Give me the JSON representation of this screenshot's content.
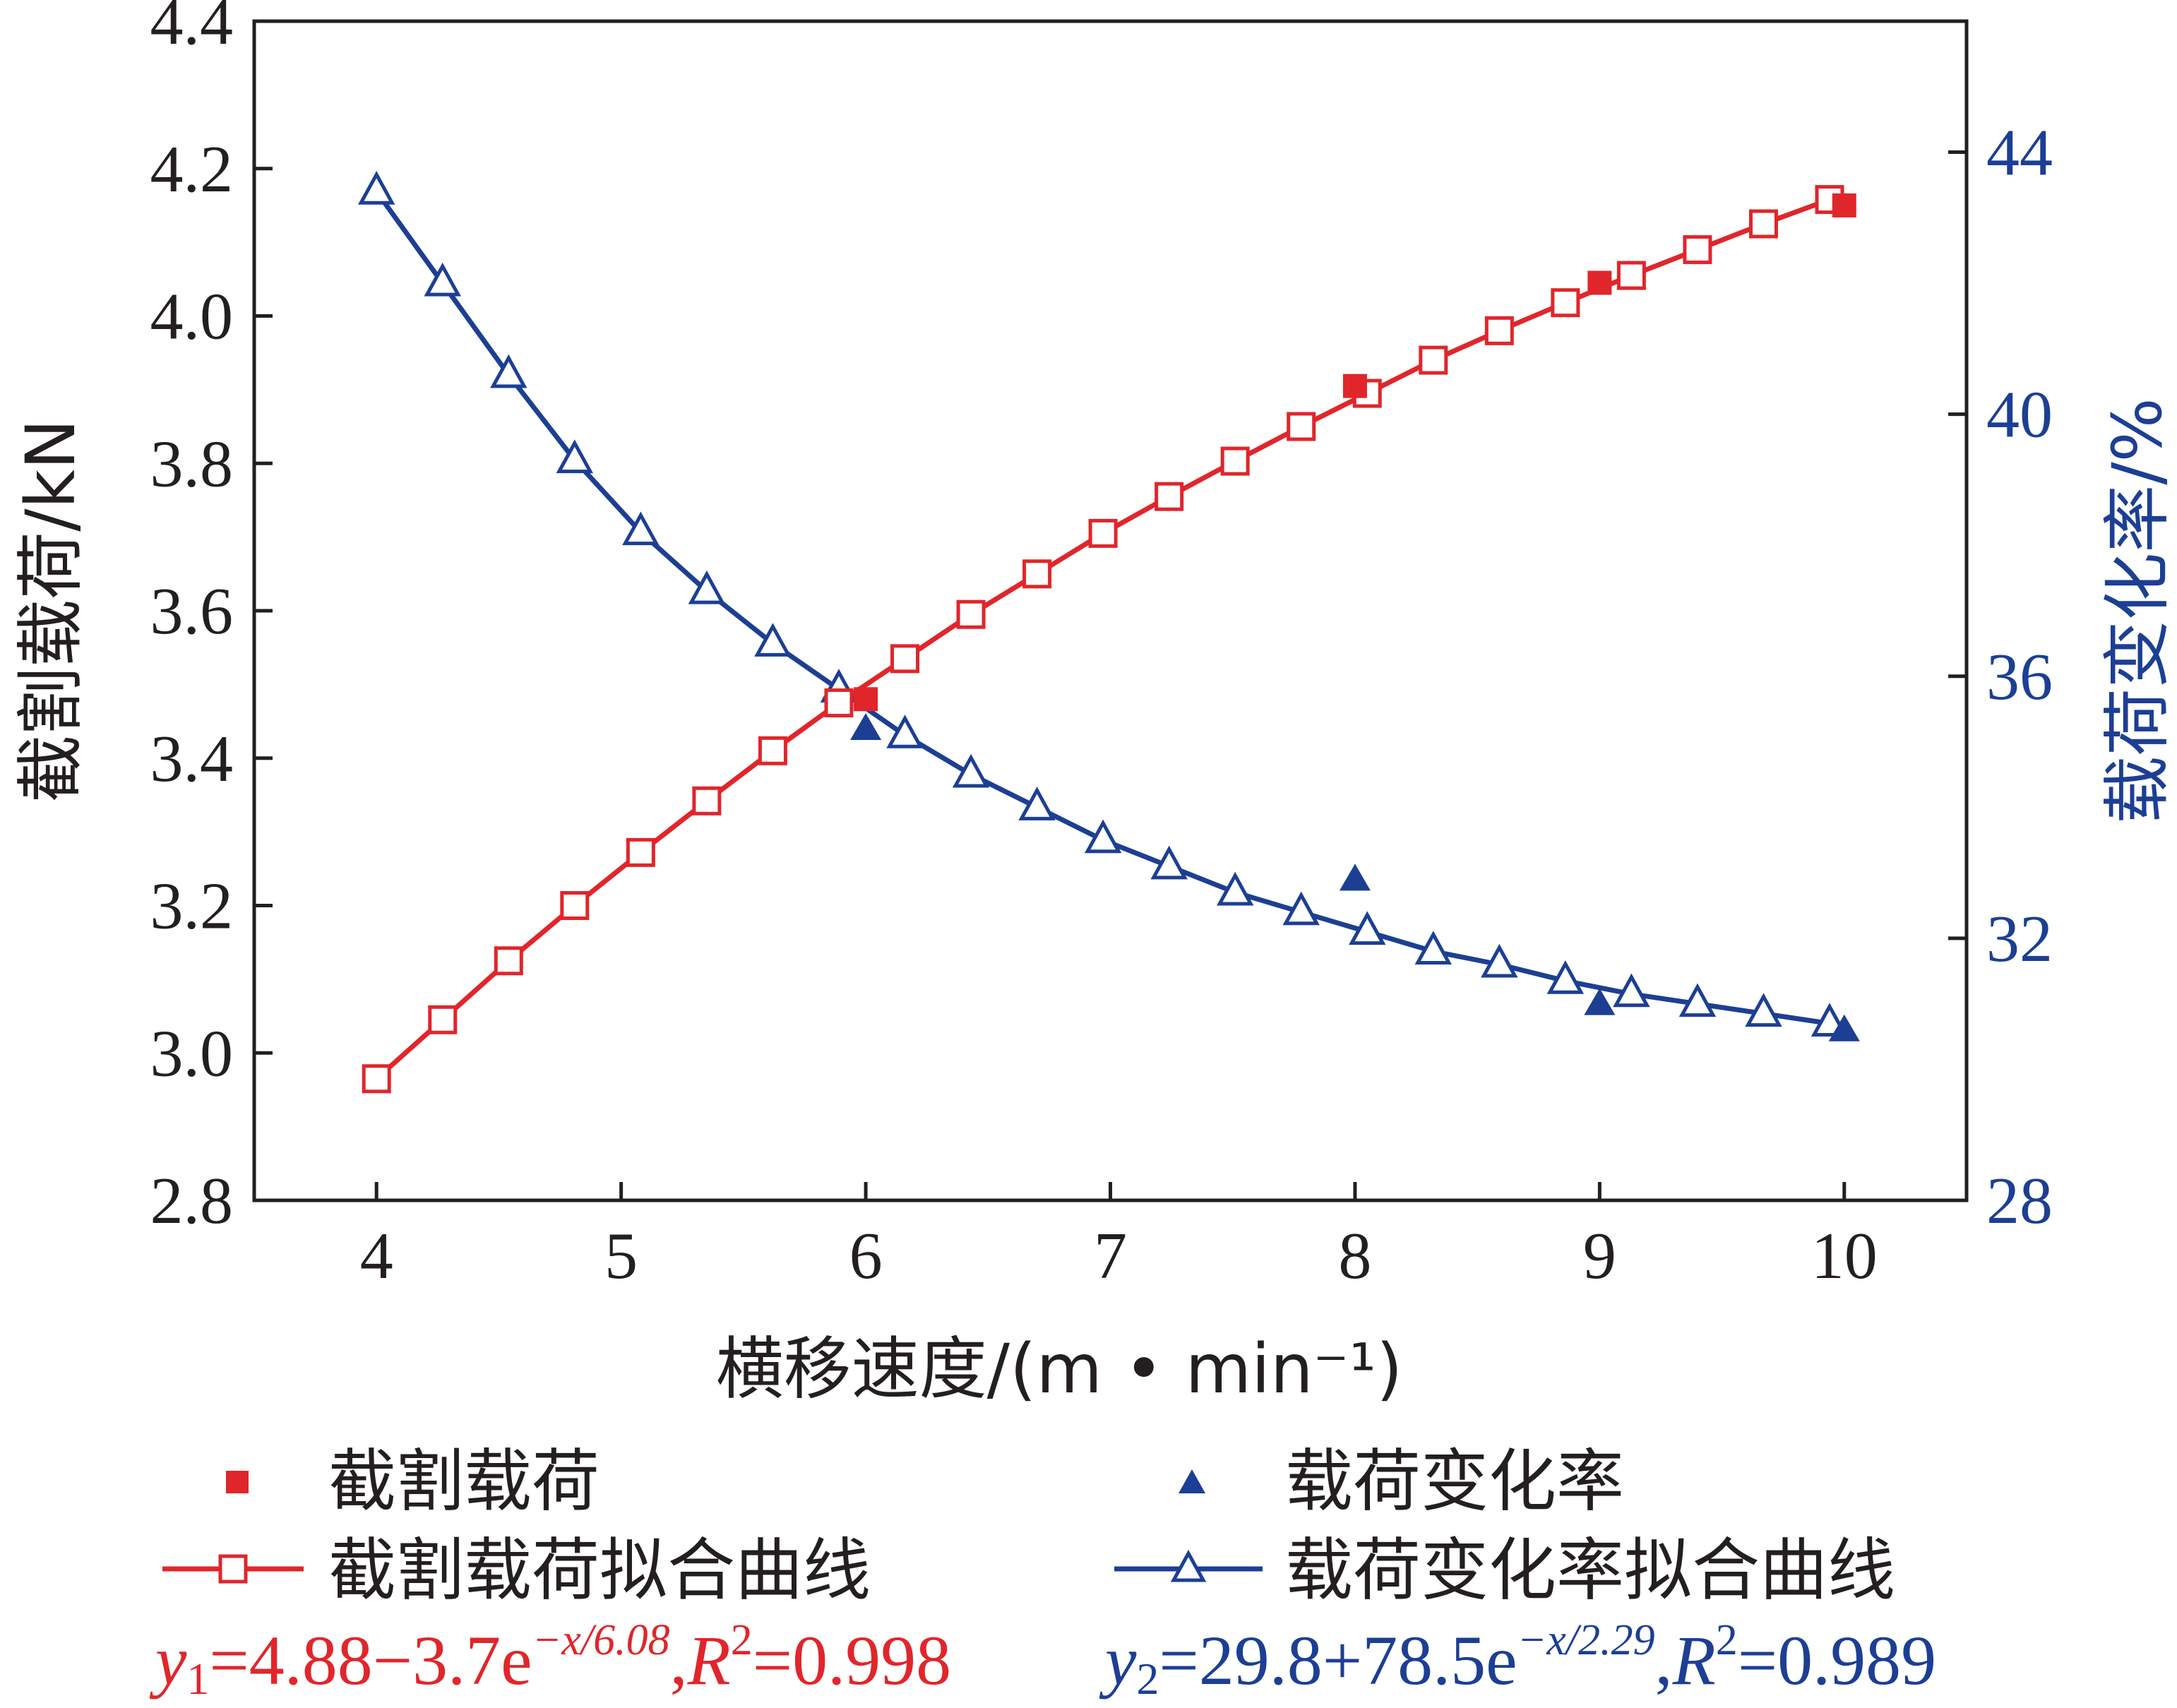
{
  "chart_data": {
    "type": "line",
    "xlabel": "横移速度/(m • min⁻¹)",
    "ylabel": "截割载荷/kN",
    "y2label": "载荷变化率/%",
    "x_ticks": [
      "4",
      "5",
      "6",
      "7",
      "8",
      "9",
      "10"
    ],
    "y_ticks": [
      "2.8",
      "3.0",
      "3.2",
      "3.4",
      "3.6",
      "3.8",
      "4.0",
      "4.2",
      "4.4"
    ],
    "y2_ticks": [
      "28",
      "32",
      "36",
      "40",
      "44"
    ],
    "xlim": [
      3.5,
      10.5
    ],
    "ylim": [
      2.8,
      4.4
    ],
    "y2lim": [
      28,
      46
    ],
    "grid": false,
    "legend_position": "bottom",
    "series": [
      {
        "name": "截割载荷",
        "kind": "scatter",
        "marker": "filled-square",
        "color": "#e0262b",
        "axis": "left",
        "x": [
          6,
          8,
          9,
          10
        ],
        "y": [
          3.48,
          3.905,
          4.045,
          4.15
        ]
      },
      {
        "name": "载荷变化率",
        "kind": "scatter",
        "marker": "filled-triangle",
        "color": "#1c3f94",
        "axis": "right",
        "x": [
          6,
          8,
          9,
          10
        ],
        "y": [
          35.2,
          32.9,
          31.0,
          30.6
        ]
      },
      {
        "name": "截割载荷拟合曲线",
        "kind": "line",
        "marker": "open-square",
        "color": "#e0262b",
        "axis": "left",
        "x": [
          4.0,
          4.27,
          4.54,
          4.81,
          5.08,
          5.35,
          5.62,
          5.89,
          6.16,
          6.43,
          6.7,
          6.97,
          7.24,
          7.51,
          7.78,
          8.05,
          8.32,
          8.59,
          8.86,
          9.13,
          9.4,
          9.67,
          9.94
        ],
        "y": [
          2.965,
          3.045,
          3.125,
          3.2,
          3.272,
          3.342,
          3.41,
          3.475,
          3.535,
          3.595,
          3.65,
          3.705,
          3.755,
          3.803,
          3.85,
          3.895,
          3.94,
          3.98,
          4.018,
          4.055,
          4.09,
          4.125,
          4.158
        ]
      },
      {
        "name": "载荷变化率拟合曲线",
        "kind": "line",
        "marker": "open-triangle",
        "color": "#1c3f94",
        "axis": "right",
        "x": [
          4.0,
          4.27,
          4.54,
          4.81,
          5.08,
          5.35,
          5.62,
          5.89,
          6.16,
          6.43,
          6.7,
          6.97,
          7.24,
          7.51,
          7.78,
          8.05,
          8.32,
          8.59,
          8.86,
          9.13,
          9.4,
          9.67,
          9.94
        ],
        "y": [
          43.4,
          42.0,
          40.6,
          39.3,
          38.2,
          37.3,
          36.5,
          35.8,
          35.1,
          34.5,
          34.0,
          33.5,
          33.1,
          32.7,
          32.4,
          32.1,
          31.8,
          31.6,
          31.35,
          31.15,
          31.0,
          30.85,
          30.7
        ]
      }
    ],
    "equations": {
      "red": {
        "y": "y",
        "sub": "1",
        "body": "=4.88−3.7e",
        "exp": "−x/6.08",
        "comma": ",",
        "r": "R",
        "r2": "2",
        "tail": "=0.998"
      },
      "blue": {
        "y": "y",
        "sub": "2",
        "body": "=29.8+78.5e",
        "exp": "−x/2.29",
        "comma": ",",
        "r": "R",
        "r2": "2",
        "tail": "=0.989"
      }
    }
  }
}
